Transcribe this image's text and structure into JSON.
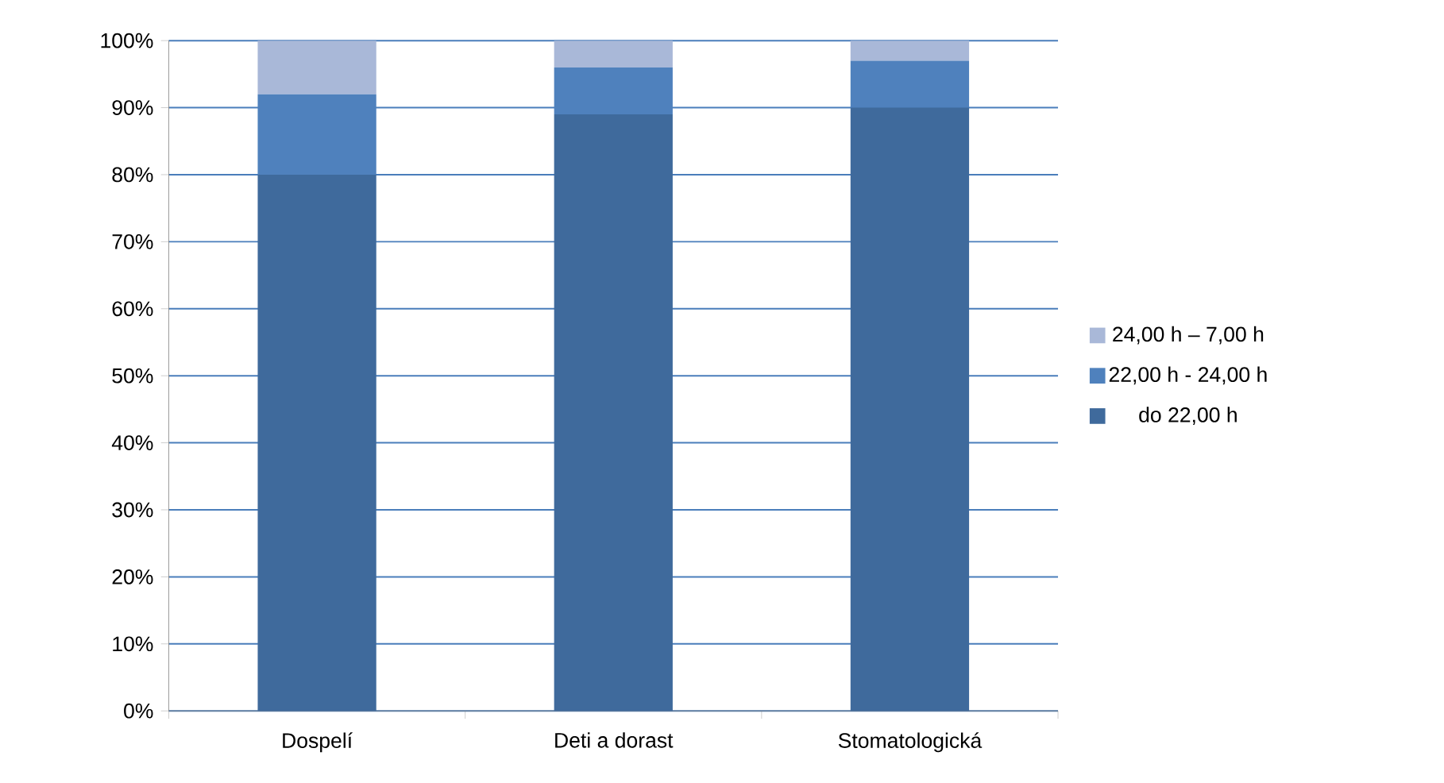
{
  "chart_data": {
    "type": "bar",
    "stacked": true,
    "categories": [
      "Dospelí",
      "Deti a dorast",
      "Stomatologická"
    ],
    "series": [
      {
        "name": "do 22,00 h",
        "color": "#3f6a9c",
        "values": [
          80,
          89,
          90
        ]
      },
      {
        "name": "22,00 h - 24,00 h",
        "color": "#4f81bd",
        "values": [
          12,
          7,
          7
        ]
      },
      {
        "name": "24,00 h – 7,00 h",
        "color": "#a9b8d8",
        "values": [
          8,
          4,
          3
        ]
      }
    ],
    "ylim": [
      0,
      100
    ],
    "yticks": [
      {
        "value": 0,
        "label": "0%"
      },
      {
        "value": 10,
        "label": "10%"
      },
      {
        "value": 20,
        "label": "20%"
      },
      {
        "value": 30,
        "label": "30%"
      },
      {
        "value": 40,
        "label": "40%"
      },
      {
        "value": 50,
        "label": "50%"
      },
      {
        "value": 60,
        "label": "60%"
      },
      {
        "value": 70,
        "label": "70%"
      },
      {
        "value": 80,
        "label": "80%"
      },
      {
        "value": 90,
        "label": "90%"
      },
      {
        "value": 100,
        "label": "100%"
      }
    ],
    "grid": "y",
    "legend": "right"
  }
}
